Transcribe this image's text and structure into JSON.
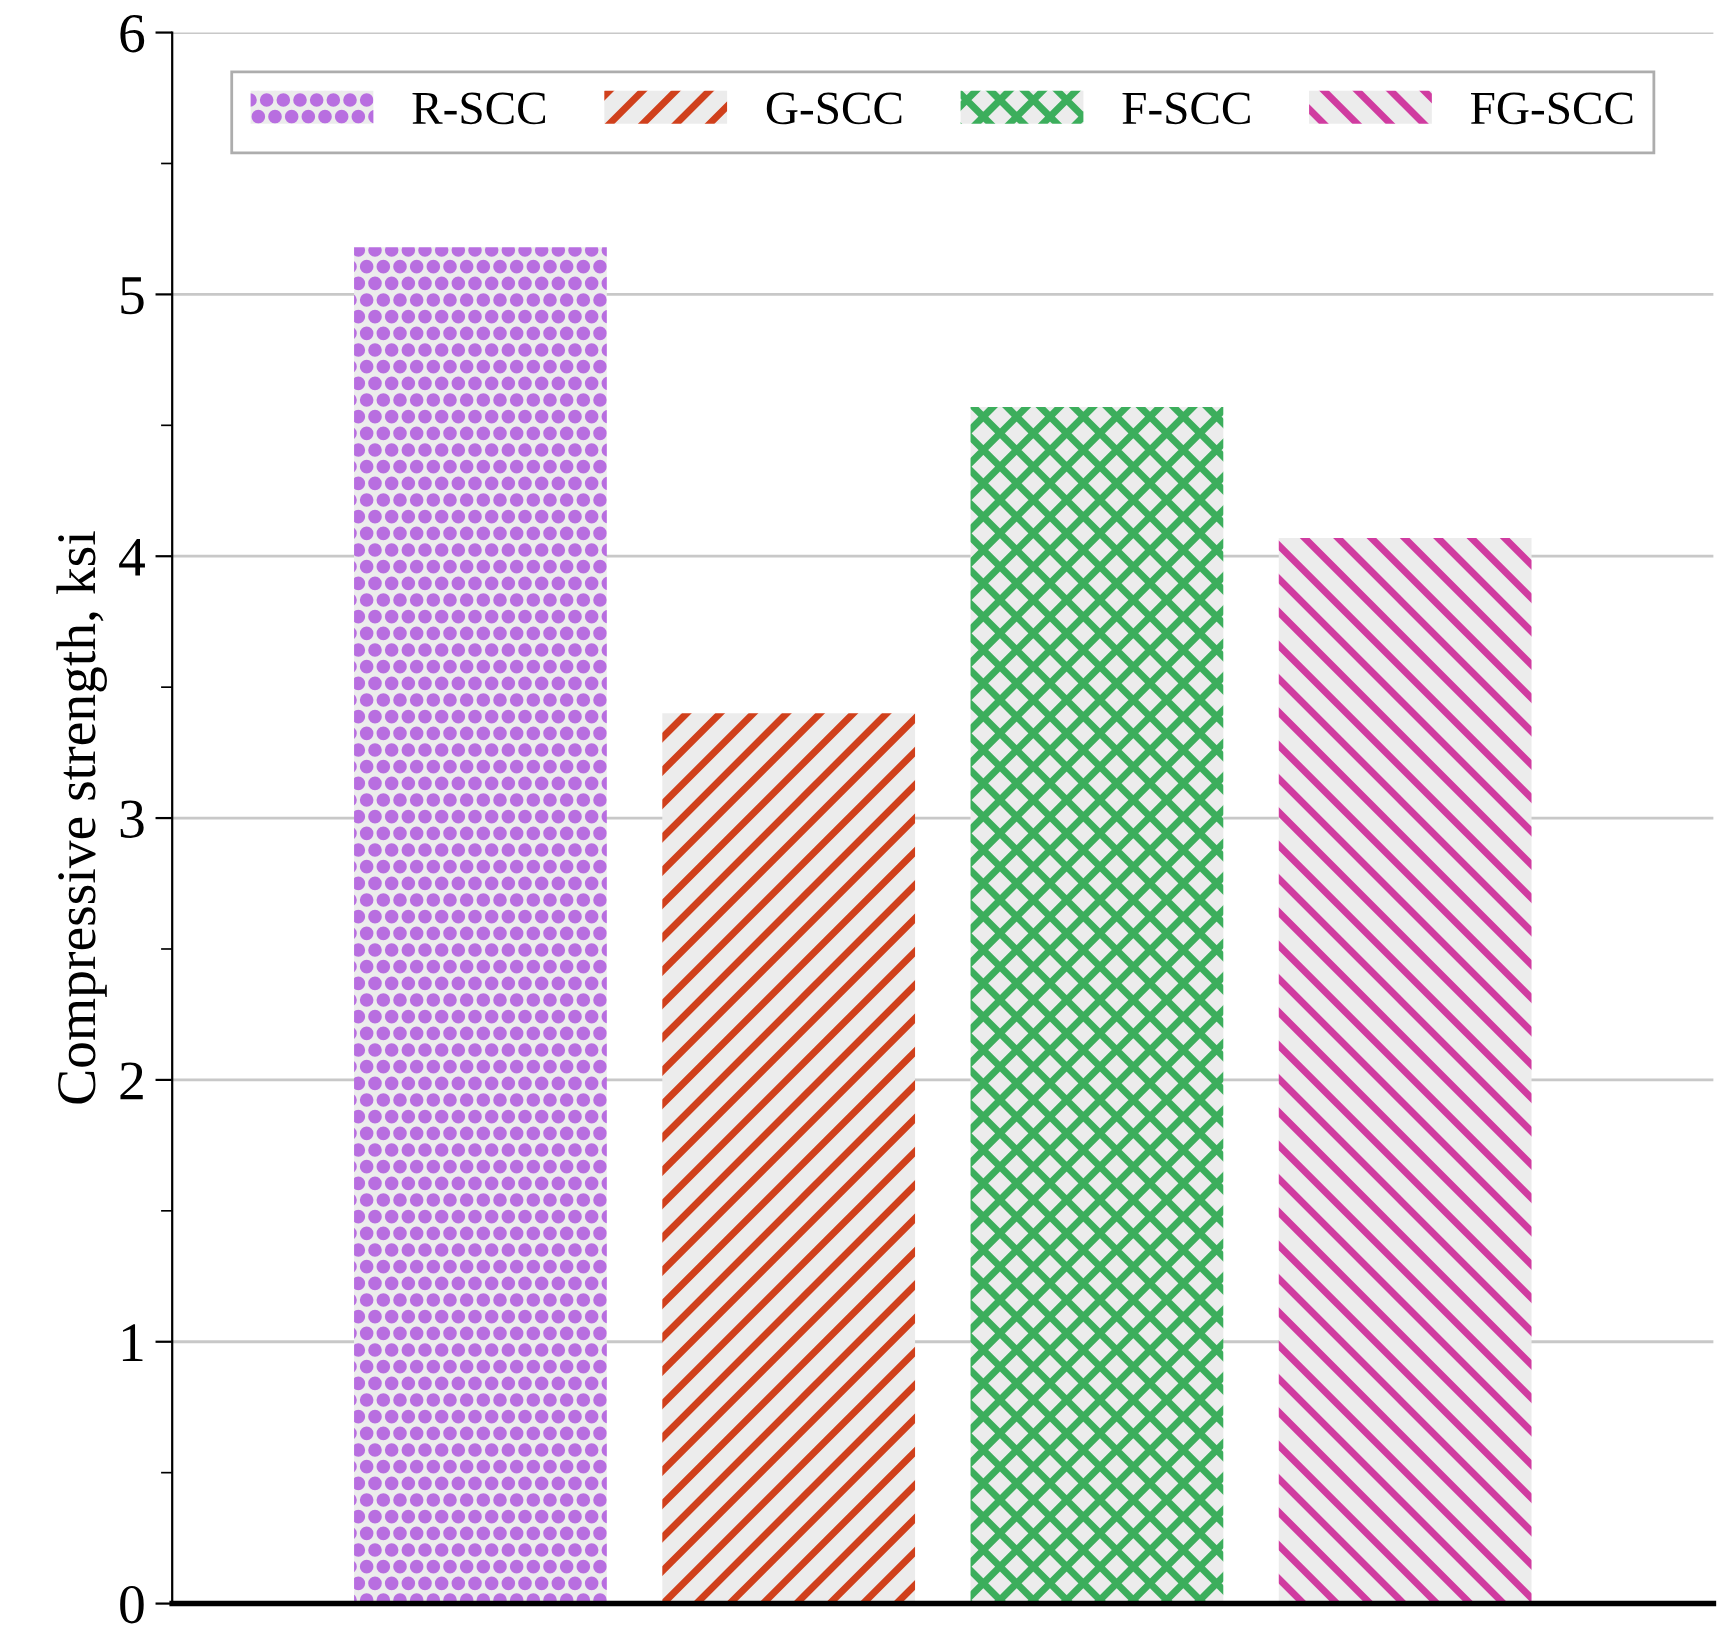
{
  "chart_data": {
    "type": "bar",
    "ylabel": "Compressive strength, ksi",
    "categories": [
      null,
      null,
      null,
      null
    ],
    "series": [
      {
        "name": "R-SCC",
        "color": "#b86ee0",
        "values": [
          5.18,
          null,
          null,
          null
        ]
      },
      {
        "name": "G-SCC",
        "color": "#d0401c",
        "values": [
          null,
          3.4,
          null,
          null
        ]
      },
      {
        "name": "F-SCC",
        "color": "#3cae5c",
        "values": [
          null,
          null,
          4.57,
          null
        ]
      },
      {
        "name": "FG-SCC",
        "color": "#d03ca0",
        "values": [
          null,
          null,
          null,
          4.07
        ]
      }
    ],
    "ylim": [
      0,
      6
    ],
    "yticks": [
      0,
      1,
      2,
      3,
      4,
      5,
      6
    ],
    "grid": "y",
    "legend": "top"
  }
}
